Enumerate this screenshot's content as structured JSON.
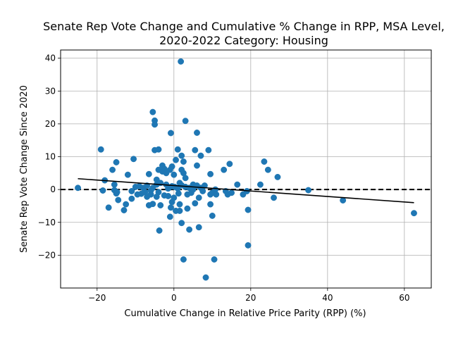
{
  "chart_data": {
    "type": "scatter",
    "title_lines": [
      "Senate Rep Vote Change and Cumulative % Change in RPP, MSA Level,",
      "2020-2022 Category: Housing"
    ],
    "xlabel": "Cumulative Change in Relative Price Parity (RPP) (%)",
    "ylabel": "Senate Rep Vote Change Since 2020",
    "xlim": [
      -29.5,
      67
    ],
    "ylim": [
      -30,
      42.5
    ],
    "xticks": [
      -20,
      0,
      20,
      40,
      60
    ],
    "yticks": [
      -20,
      -10,
      0,
      10,
      20,
      30,
      40
    ],
    "xtick_labels": [
      "−20",
      "0",
      "20",
      "40",
      "60"
    ],
    "ytick_labels": [
      "−20",
      "−10",
      "0",
      "10",
      "20",
      "30",
      "40"
    ],
    "grid": true,
    "point_color": "#1f77b4",
    "trend_line": {
      "x": [
        -25,
        62.5
      ],
      "y": [
        3.3,
        -4.0
      ],
      "color": "#000000"
    },
    "zero_line": {
      "y": 0,
      "style": "dashed",
      "color": "#000000"
    },
    "points": [
      [
        -25,
        0.5
      ],
      [
        -19,
        12.2
      ],
      [
        -18.5,
        -0.3
      ],
      [
        -18,
        2.8
      ],
      [
        -17,
        -5.5
      ],
      [
        -16,
        6
      ],
      [
        -15.5,
        1.5
      ],
      [
        -15,
        8.3
      ],
      [
        -15,
        -1.2
      ],
      [
        -14.5,
        -3.2
      ],
      [
        -15.5,
        -0.2
      ],
      [
        -14.8,
        -0.8
      ],
      [
        -13,
        -6.3
      ],
      [
        -12.5,
        -4.5
      ],
      [
        -12,
        4.5
      ],
      [
        -11,
        -0.5
      ],
      [
        -11,
        -2.8
      ],
      [
        -10.5,
        9.3
      ],
      [
        -10,
        0.8
      ],
      [
        -9.5,
        -1.5
      ],
      [
        -9,
        1
      ],
      [
        -8.5,
        -1.3
      ],
      [
        -8,
        0.5
      ],
      [
        -7.5,
        -0.8
      ],
      [
        -7,
        -2.2
      ],
      [
        -7,
        1.2
      ],
      [
        -6.5,
        -4.8
      ],
      [
        -6.5,
        4.7
      ],
      [
        -6,
        -1.5
      ],
      [
        -6,
        -0.3
      ],
      [
        -5.5,
        0.5
      ],
      [
        -5.5,
        -4.4
      ],
      [
        -5.5,
        23.6
      ],
      [
        -5,
        21
      ],
      [
        -5,
        19.8
      ],
      [
        -5,
        12
      ],
      [
        -4.5,
        3
      ],
      [
        -4.5,
        -2.2
      ],
      [
        -4.5,
        1.5
      ],
      [
        -4,
        12.2
      ],
      [
        -4,
        6
      ],
      [
        -4,
        -0.8
      ],
      [
        -3.8,
        -12.5
      ],
      [
        -3.5,
        -4.8
      ],
      [
        -3.5,
        2
      ],
      [
        -3,
        7.3
      ],
      [
        -3,
        5.5
      ],
      [
        -2.5,
        6.3
      ],
      [
        -2.5,
        -1.8
      ],
      [
        -2,
        5
      ],
      [
        -2,
        1.5
      ],
      [
        -1.5,
        -2
      ],
      [
        -1.5,
        0.3
      ],
      [
        -1,
        6
      ],
      [
        -1,
        -8.3
      ],
      [
        -0.8,
        17.2
      ],
      [
        -0.8,
        -5.5
      ],
      [
        -0.5,
        7
      ],
      [
        -0.5,
        -3.8
      ],
      [
        -0.5,
        1
      ],
      [
        0,
        4.5
      ],
      [
        0,
        -2.5
      ],
      [
        0.2,
        0.8
      ],
      [
        0.5,
        9
      ],
      [
        0.5,
        -6.5
      ],
      [
        1,
        12.2
      ],
      [
        1,
        0.3
      ],
      [
        1.2,
        -1.2
      ],
      [
        1.5,
        2
      ],
      [
        1.5,
        -4.5
      ],
      [
        1.5,
        -6.5
      ],
      [
        1.8,
        39
      ],
      [
        2,
        10.3
      ],
      [
        2,
        6
      ],
      [
        2,
        1.3
      ],
      [
        2,
        -10.2
      ],
      [
        2.5,
        5
      ],
      [
        2.5,
        8.5
      ],
      [
        2.5,
        -21.3
      ],
      [
        3,
        3.5
      ],
      [
        3,
        0.8
      ],
      [
        3,
        20.9
      ],
      [
        3.5,
        -5.8
      ],
      [
        3.5,
        -1.5
      ],
      [
        4,
        -12.2
      ],
      [
        4,
        0.5
      ],
      [
        4.5,
        -1
      ],
      [
        5,
        1.5
      ],
      [
        5,
        0
      ],
      [
        5.5,
        -4.2
      ],
      [
        5.5,
        12
      ],
      [
        6,
        17.3
      ],
      [
        6,
        7.3
      ],
      [
        6,
        1.2
      ],
      [
        6.5,
        -11.5
      ],
      [
        6.5,
        -2.5
      ],
      [
        7,
        10.3
      ],
      [
        7,
        0.5
      ],
      [
        7.5,
        -0.5
      ],
      [
        8,
        1.2
      ],
      [
        8.3,
        -26.8
      ],
      [
        9,
        12
      ],
      [
        9.5,
        -4.5
      ],
      [
        9.5,
        4.7
      ],
      [
        9.5,
        -1.5
      ],
      [
        10,
        -8
      ],
      [
        10,
        -1
      ],
      [
        10.5,
        -21.3
      ],
      [
        10.8,
        0
      ],
      [
        11,
        -1.5
      ],
      [
        13,
        6
      ],
      [
        13.5,
        -0.5
      ],
      [
        14,
        -1.5
      ],
      [
        14.5,
        7.8
      ],
      [
        15,
        -1
      ],
      [
        16.5,
        1.5
      ],
      [
        18,
        -1.5
      ],
      [
        19,
        -0.5
      ],
      [
        19.3,
        -6.2
      ],
      [
        19.3,
        -17
      ],
      [
        22.5,
        1.5
      ],
      [
        23.5,
        8.5
      ],
      [
        24.5,
        6
      ],
      [
        26,
        -2.5
      ],
      [
        27,
        3.8
      ],
      [
        35,
        -0.2
      ],
      [
        44,
        -3.3
      ],
      [
        62.5,
        -7.2
      ]
    ]
  }
}
